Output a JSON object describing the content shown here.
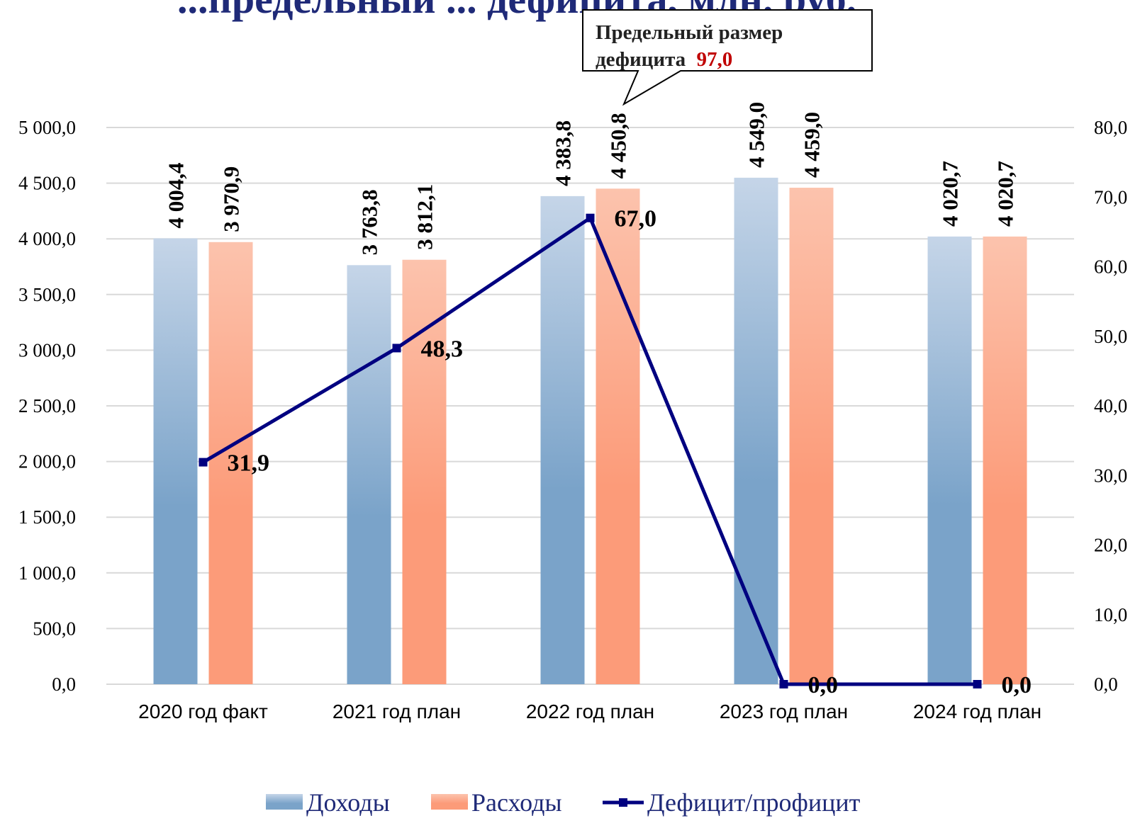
{
  "chart_data": {
    "type": "bar",
    "title": "...предельный ... дефицита, млн. руб.",
    "categories": [
      "2020 год факт",
      "2021 год план",
      "2022 год план",
      "2023 год план",
      "2024 год план"
    ],
    "series": [
      {
        "name": "Доходы",
        "type": "bar",
        "axis": "left",
        "values": [
          4004.4,
          3763.8,
          4383.8,
          4549.0,
          4020.7
        ],
        "labels": [
          "4 004,4",
          "3 763,8",
          "4 383,8",
          "4 549,0",
          "4 020,7"
        ],
        "color_top": "#c5d5e8",
        "color_bottom": "#7aa3c9"
      },
      {
        "name": "Расходы",
        "type": "bar",
        "axis": "left",
        "values": [
          3970.9,
          3812.1,
          4450.8,
          4459.0,
          4020.7
        ],
        "labels": [
          "3 970,9",
          "3 812,1",
          "4 450,8",
          "4 459,0",
          "4 020,7"
        ],
        "color_top": "#fcc3ad",
        "color_bottom": "#fc9b79"
      },
      {
        "name": "Дефицит/профицит",
        "type": "line",
        "axis": "right",
        "values": [
          31.9,
          48.3,
          67.0,
          0.0,
          0.0
        ],
        "labels": [
          "31,9",
          "48,3",
          "67,0",
          "0,0",
          "0,0"
        ],
        "color": "#000080"
      }
    ],
    "y_left": {
      "min": 0,
      "max": 5000,
      "step": 500,
      "tick_labels": [
        "0,0",
        "500,0",
        "1 000,0",
        "1 500,0",
        "2 000,0",
        "2 500,0",
        "3 000,0",
        "3 500,0",
        "4 000,0",
        "4 500,0",
        "5 000,0"
      ]
    },
    "y_right": {
      "min": 0,
      "max": 80,
      "step": 10,
      "tick_labels": [
        "0,0",
        "10,0",
        "20,0",
        "30,0",
        "40,0",
        "50,0",
        "60,0",
        "70,0",
        "80,0"
      ]
    },
    "grid": true,
    "legend_position": "bottom",
    "annotation": {
      "text_line1": "Предельный размер",
      "text_line2_prefix": "дефицита",
      "value": "97,0"
    }
  }
}
